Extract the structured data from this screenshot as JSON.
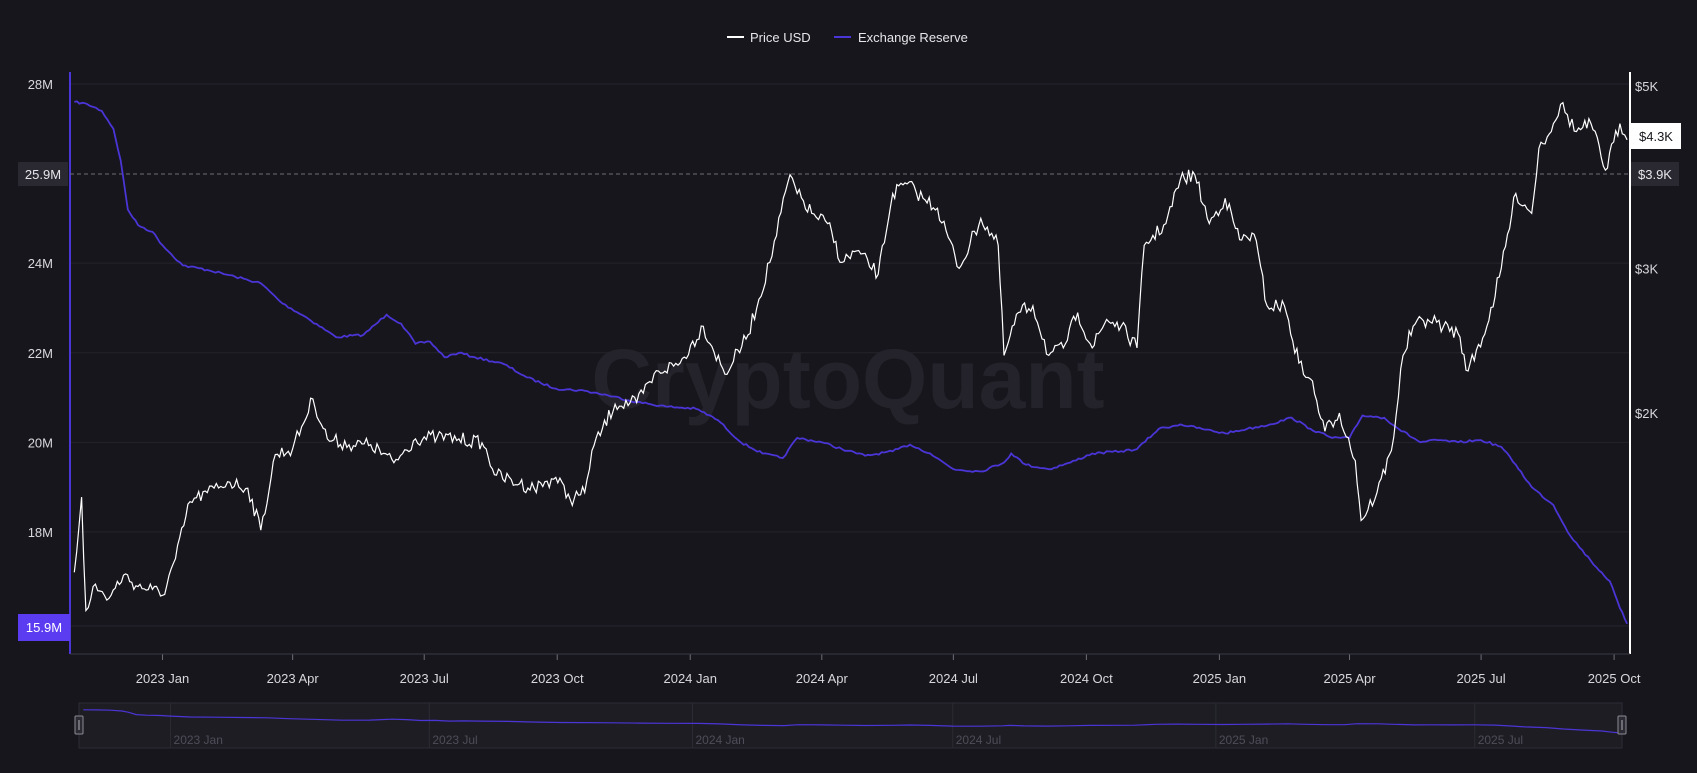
{
  "legend": {
    "price_label": "Price USD",
    "reserve_label": "Exchange Reserve"
  },
  "watermark": "CryptoQuant",
  "badges": {
    "reserve_current": "15.9M",
    "reserve_crosshair": "25.9M",
    "price_current": "$4.3K",
    "price_crosshair": "$3.9K"
  },
  "navigator": {
    "labels": [
      "2023 Jan",
      "2023 Jul",
      "2024 Jan",
      "2024 Jul",
      "2025 Jan",
      "2025 Jul"
    ]
  },
  "colors": {
    "background": "#17161c",
    "price": "#ffffff",
    "reserve": "#4a35d6",
    "badge_reserve": "#5b3cf0",
    "grid": "#26252d",
    "axis_text": "#d8d8dc"
  },
  "chart_data": {
    "type": "line",
    "title": "",
    "x_axis": {
      "type": "date",
      "range": [
        "2022-11-01",
        "2025-10-12"
      ],
      "tick_labels": [
        "2023 Jan",
        "2023 Apr",
        "2023 Jul",
        "2023 Oct",
        "2024 Jan",
        "2024 Apr",
        "2024 Jul",
        "2024 Oct",
        "2025 Jan",
        "2025 Apr",
        "2025 Jul",
        "2025 Oct"
      ]
    },
    "y_left": {
      "series": "Exchange Reserve",
      "range": [
        15.9,
        28.2
      ],
      "unit": "M",
      "tick_labels": [
        "28M",
        "24M",
        "22M",
        "20M",
        "18M"
      ]
    },
    "y_right": {
      "series": "Price USD",
      "scale": "log",
      "range": [
        1180,
        5050
      ],
      "tick_labels": [
        "$5K",
        "$3K",
        "$2K"
      ]
    },
    "crosshair": {
      "reserve": 25.9,
      "price": 3900
    },
    "grid": true,
    "legend_position": "top-center",
    "series": [
      {
        "name": "Exchange Reserve",
        "axis": "left",
        "points": [
          [
            "2022-11-01",
            27.6
          ],
          [
            "2022-11-10",
            27.55
          ],
          [
            "2022-11-20",
            27.4
          ],
          [
            "2022-11-28",
            27.0
          ],
          [
            "2022-12-03",
            26.3
          ],
          [
            "2022-12-08",
            25.2
          ],
          [
            "2022-12-15",
            24.85
          ],
          [
            "2022-12-25",
            24.7
          ],
          [
            "2023-01-01",
            24.4
          ],
          [
            "2023-01-15",
            23.95
          ],
          [
            "2023-02-01",
            23.85
          ],
          [
            "2023-02-20",
            23.7
          ],
          [
            "2023-03-10",
            23.55
          ],
          [
            "2023-03-25",
            23.1
          ],
          [
            "2023-04-10",
            22.8
          ],
          [
            "2023-05-01",
            22.35
          ],
          [
            "2023-05-20",
            22.4
          ],
          [
            "2023-06-05",
            22.85
          ],
          [
            "2023-06-15",
            22.65
          ],
          [
            "2023-06-25",
            22.2
          ],
          [
            "2023-07-05",
            22.25
          ],
          [
            "2023-07-15",
            21.9
          ],
          [
            "2023-07-25",
            22.0
          ],
          [
            "2023-08-05",
            21.9
          ],
          [
            "2023-08-25",
            21.75
          ],
          [
            "2023-09-10",
            21.45
          ],
          [
            "2023-09-30",
            21.2
          ],
          [
            "2023-10-20",
            21.15
          ],
          [
            "2023-11-05",
            21.05
          ],
          [
            "2023-11-25",
            20.9
          ],
          [
            "2023-12-15",
            20.8
          ],
          [
            "2024-01-05",
            20.75
          ],
          [
            "2024-01-20",
            20.5
          ],
          [
            "2024-02-05",
            20.0
          ],
          [
            "2024-02-20",
            19.75
          ],
          [
            "2024-03-05",
            19.65
          ],
          [
            "2024-03-15",
            20.1
          ],
          [
            "2024-04-01",
            20.0
          ],
          [
            "2024-04-15",
            19.85
          ],
          [
            "2024-05-01",
            19.7
          ],
          [
            "2024-05-20",
            19.8
          ],
          [
            "2024-06-01",
            19.95
          ],
          [
            "2024-06-15",
            19.75
          ],
          [
            "2024-07-01",
            19.4
          ],
          [
            "2024-07-20",
            19.35
          ],
          [
            "2024-08-05",
            19.55
          ],
          [
            "2024-08-10",
            19.75
          ],
          [
            "2024-08-20",
            19.5
          ],
          [
            "2024-09-05",
            19.4
          ],
          [
            "2024-09-20",
            19.55
          ],
          [
            "2024-10-05",
            19.75
          ],
          [
            "2024-10-25",
            19.8
          ],
          [
            "2024-11-05",
            19.85
          ],
          [
            "2024-11-20",
            20.3
          ],
          [
            "2024-12-05",
            20.4
          ],
          [
            "2024-12-20",
            20.3
          ],
          [
            "2025-01-05",
            20.2
          ],
          [
            "2025-01-20",
            20.3
          ],
          [
            "2025-02-05",
            20.4
          ],
          [
            "2025-02-20",
            20.55
          ],
          [
            "2025-03-05",
            20.3
          ],
          [
            "2025-03-20",
            20.1
          ],
          [
            "2025-04-01",
            20.1
          ],
          [
            "2025-04-10",
            20.6
          ],
          [
            "2025-04-25",
            20.55
          ],
          [
            "2025-05-05",
            20.3
          ],
          [
            "2025-05-20",
            20.0
          ],
          [
            "2025-06-01",
            20.05
          ],
          [
            "2025-06-15",
            20.0
          ],
          [
            "2025-07-01",
            20.05
          ],
          [
            "2025-07-15",
            19.9
          ],
          [
            "2025-07-25",
            19.5
          ],
          [
            "2025-08-05",
            19.0
          ],
          [
            "2025-08-20",
            18.6
          ],
          [
            "2025-09-01",
            17.9
          ],
          [
            "2025-09-15",
            17.35
          ],
          [
            "2025-09-28",
            16.9
          ],
          [
            "2025-10-05",
            16.3
          ],
          [
            "2025-10-10",
            15.95
          ]
        ]
      },
      {
        "name": "Price USD",
        "axis": "right",
        "points": [
          [
            "2022-11-01",
            1280
          ],
          [
            "2022-11-06",
            1580
          ],
          [
            "2022-11-09",
            1150
          ],
          [
            "2022-11-14",
            1230
          ],
          [
            "2022-11-25",
            1190
          ],
          [
            "2022-12-05",
            1270
          ],
          [
            "2022-12-15",
            1230
          ],
          [
            "2022-12-25",
            1220
          ],
          [
            "2023-01-01",
            1200
          ],
          [
            "2023-01-10",
            1330
          ],
          [
            "2023-01-20",
            1560
          ],
          [
            "2023-02-01",
            1600
          ],
          [
            "2023-02-15",
            1650
          ],
          [
            "2023-03-01",
            1620
          ],
          [
            "2023-03-10",
            1440
          ],
          [
            "2023-03-20",
            1780
          ],
          [
            "2023-04-01",
            1810
          ],
          [
            "2023-04-15",
            2080
          ],
          [
            "2023-04-25",
            1860
          ],
          [
            "2023-05-10",
            1830
          ],
          [
            "2023-05-25",
            1830
          ],
          [
            "2023-06-10",
            1740
          ],
          [
            "2023-06-25",
            1860
          ],
          [
            "2023-07-10",
            1870
          ],
          [
            "2023-07-25",
            1860
          ],
          [
            "2023-08-10",
            1840
          ],
          [
            "2023-08-20",
            1680
          ],
          [
            "2023-09-05",
            1640
          ],
          [
            "2023-09-15",
            1620
          ],
          [
            "2023-09-30",
            1670
          ],
          [
            "2023-10-10",
            1570
          ],
          [
            "2023-10-20",
            1600
          ],
          [
            "2023-10-25",
            1800
          ],
          [
            "2023-11-10",
            2050
          ],
          [
            "2023-11-25",
            2060
          ],
          [
            "2023-12-10",
            2250
          ],
          [
            "2023-12-25",
            2300
          ],
          [
            "2024-01-10",
            2550
          ],
          [
            "2024-01-25",
            2230
          ],
          [
            "2024-02-10",
            2490
          ],
          [
            "2024-02-25",
            3050
          ],
          [
            "2024-03-10",
            3900
          ],
          [
            "2024-03-15",
            3700
          ],
          [
            "2024-03-25",
            3500
          ],
          [
            "2024-04-05",
            3400
          ],
          [
            "2024-04-15",
            3050
          ],
          [
            "2024-04-25",
            3150
          ],
          [
            "2024-05-10",
            2950
          ],
          [
            "2024-05-20",
            3700
          ],
          [
            "2024-05-30",
            3800
          ],
          [
            "2024-06-10",
            3650
          ],
          [
            "2024-06-20",
            3550
          ],
          [
            "2024-07-05",
            3000
          ],
          [
            "2024-07-20",
            3450
          ],
          [
            "2024-08-01",
            3200
          ],
          [
            "2024-08-05",
            2350
          ],
          [
            "2024-08-15",
            2650
          ],
          [
            "2024-08-25",
            2700
          ],
          [
            "2024-09-05",
            2350
          ],
          [
            "2024-09-15",
            2400
          ],
          [
            "2024-09-25",
            2650
          ],
          [
            "2024-10-05",
            2400
          ],
          [
            "2024-10-15",
            2600
          ],
          [
            "2024-10-25",
            2550
          ],
          [
            "2024-11-05",
            2400
          ],
          [
            "2024-11-10",
            3200
          ],
          [
            "2024-11-25",
            3400
          ],
          [
            "2024-12-05",
            3850
          ],
          [
            "2024-12-15",
            3900
          ],
          [
            "2024-12-25",
            3400
          ],
          [
            "2025-01-05",
            3650
          ],
          [
            "2025-01-15",
            3250
          ],
          [
            "2025-01-25",
            3300
          ],
          [
            "2025-02-03",
            2700
          ],
          [
            "2025-02-15",
            2700
          ],
          [
            "2025-02-25",
            2300
          ],
          [
            "2025-03-05",
            2200
          ],
          [
            "2025-03-15",
            1900
          ],
          [
            "2025-03-25",
            2000
          ],
          [
            "2025-04-05",
            1750
          ],
          [
            "2025-04-09",
            1480
          ],
          [
            "2025-04-20",
            1600
          ],
          [
            "2025-04-30",
            1800
          ],
          [
            "2025-05-08",
            2350
          ],
          [
            "2025-05-15",
            2550
          ],
          [
            "2025-05-25",
            2600
          ],
          [
            "2025-06-05",
            2550
          ],
          [
            "2025-06-15",
            2500
          ],
          [
            "2025-06-22",
            2250
          ],
          [
            "2025-07-05",
            2550
          ],
          [
            "2025-07-15",
            3000
          ],
          [
            "2025-07-25",
            3700
          ],
          [
            "2025-08-05",
            3500
          ],
          [
            "2025-08-10",
            4200
          ],
          [
            "2025-08-20",
            4500
          ],
          [
            "2025-08-25",
            4750
          ],
          [
            "2025-09-05",
            4400
          ],
          [
            "2025-09-15",
            4500
          ],
          [
            "2025-09-25",
            3950
          ],
          [
            "2025-10-05",
            4500
          ],
          [
            "2025-10-10",
            4300
          ]
        ]
      }
    ]
  }
}
